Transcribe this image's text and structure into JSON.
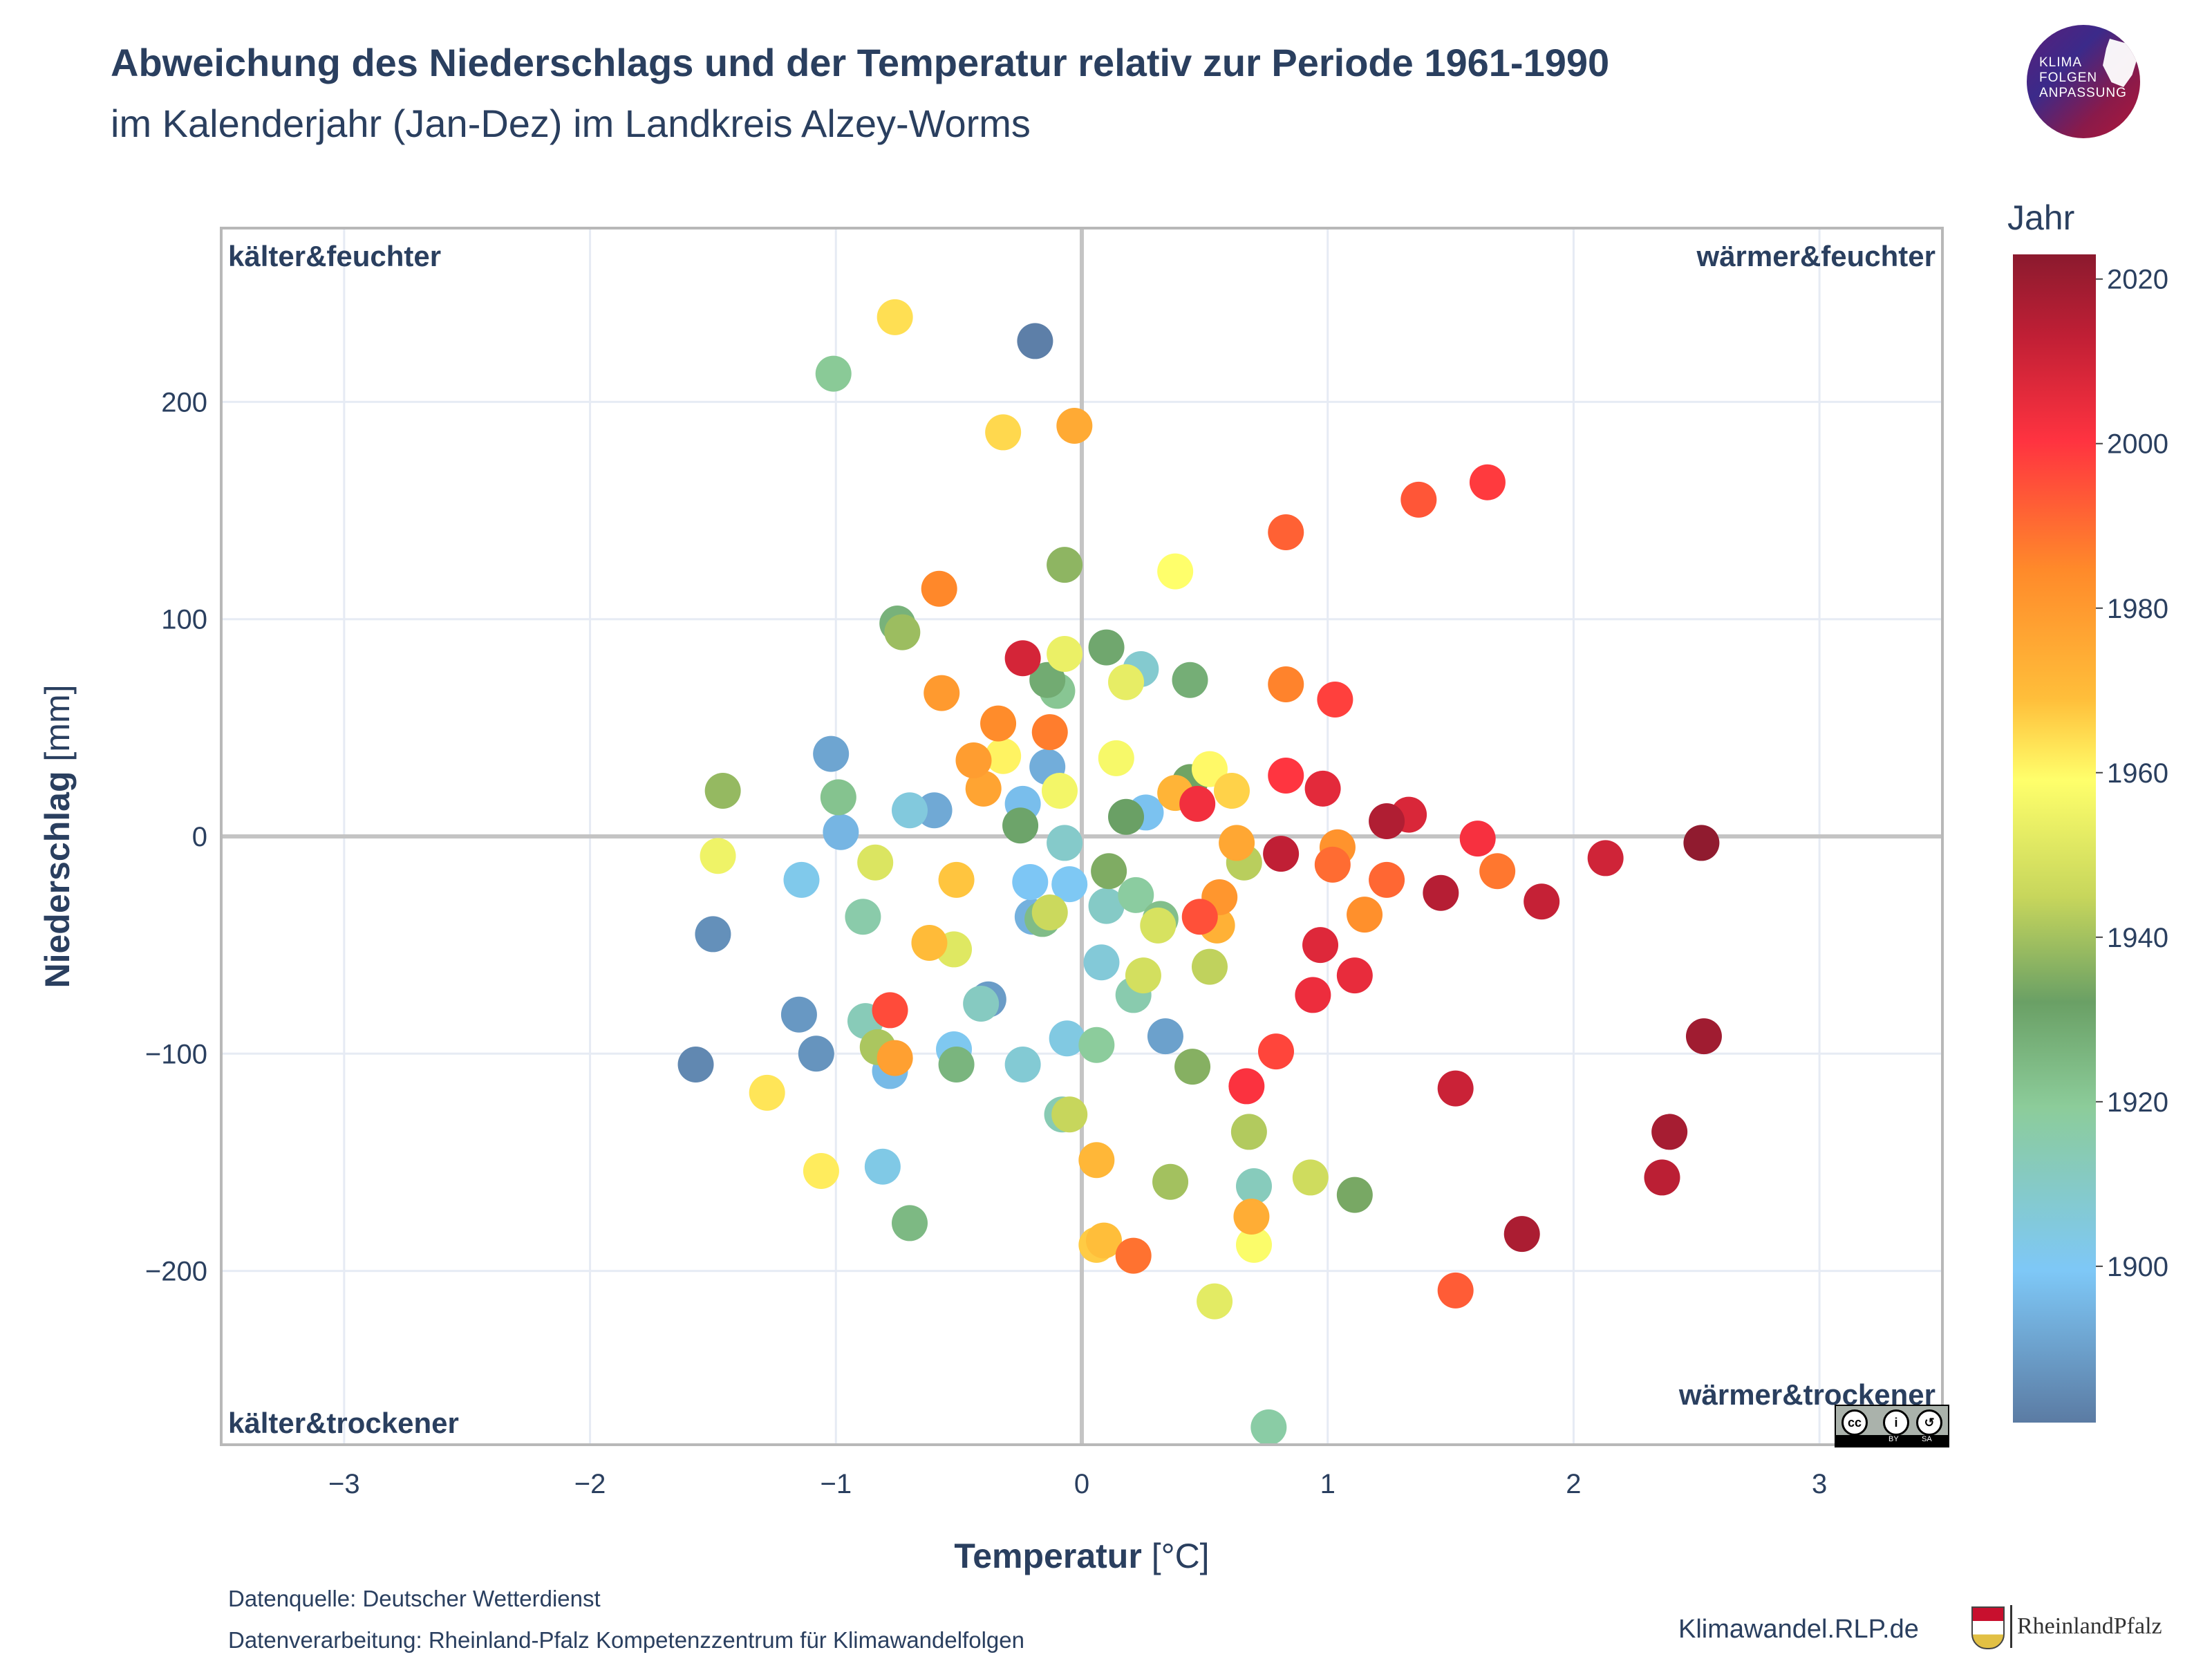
{
  "header": {
    "title": "Abweichung des Niederschlags und der Temperatur relativ zur Periode 1961-1990",
    "subtitle": "im Kalenderjahr (Jan-Dez) im Landkreis Alzey-Worms"
  },
  "logo": {
    "line1": "KLIMA",
    "line2": "FOLGEN",
    "line3": "ANPASSUNG"
  },
  "footer": {
    "source": "Datenquelle: Deutscher Wetterdienst",
    "processing": "Datenverarbeitung: Rheinland-Pfalz Kompetenzzentrum für Klimawandelfolgen",
    "website": "Klimawandel.RLP.de",
    "state_logo_text": "RheinlandPfalz",
    "license": "cc BY SA"
  },
  "colors": {
    "grid": "#e6ebf4",
    "zero_line": "#c4c4c4",
    "axis_text": "#2a3f5f",
    "scale": [
      "#5b7ba3",
      "#7ec8f7",
      "#8ccc9a",
      "#6aa065",
      "#c7d65c",
      "#ffff6b",
      "#ffbe3a",
      "#ff8a2a",
      "#ff3340",
      "#c01f35",
      "#8b1a2e"
    ]
  },
  "chart_data": {
    "type": "scatter",
    "xlabel_bold": "Temperatur",
    "xlabel_unit": " [°C]",
    "ylabel_bold": "Niederschlag",
    "ylabel_unit": " [mm]",
    "xlim": [
      -3.5,
      3.5
    ],
    "ylim": [
      -280,
      280
    ],
    "xticks": [
      -3,
      -2,
      -1,
      0,
      1,
      2,
      3
    ],
    "yticks": [
      -200,
      -100,
      0,
      100,
      200
    ],
    "grid": true,
    "quadrants": {
      "top_left": "kälter&feuchter",
      "top_right": "wärmer&feuchter",
      "bottom_left": "kälter&trockener",
      "bottom_right": "wärmer&trockener"
    },
    "colorbar": {
      "title": "Jahr",
      "min": 1881,
      "max": 2023,
      "ticks": [
        1900,
        1920,
        1940,
        1960,
        1980,
        2000,
        2020
      ]
    },
    "points": [
      {
        "x": -0.19,
        "y": 228,
        "year": 1882
      },
      {
        "x": -1.57,
        "y": -105,
        "year": 1884
      },
      {
        "x": -1.5,
        "y": -45,
        "year": 1886
      },
      {
        "x": -1.08,
        "y": -100,
        "year": 1887
      },
      {
        "x": -1.15,
        "y": -82,
        "year": 1888
      },
      {
        "x": -0.38,
        "y": -75,
        "year": 1889
      },
      {
        "x": 0.34,
        "y": -92,
        "year": 1890
      },
      {
        "x": -1.02,
        "y": 38,
        "year": 1891
      },
      {
        "x": -0.6,
        "y": 12,
        "year": 1892
      },
      {
        "x": -0.14,
        "y": 32,
        "year": 1893
      },
      {
        "x": -0.2,
        "y": -37,
        "year": 1894
      },
      {
        "x": -0.98,
        "y": 2,
        "year": 1895
      },
      {
        "x": -0.78,
        "y": -108,
        "year": 1896
      },
      {
        "x": -0.24,
        "y": 15,
        "year": 1897
      },
      {
        "x": 0.26,
        "y": 11,
        "year": 1898
      },
      {
        "x": -0.21,
        "y": -21,
        "year": 1899
      },
      {
        "x": -0.05,
        "y": -22,
        "year": 1900
      },
      {
        "x": -0.52,
        "y": -98,
        "year": 1901
      },
      {
        "x": -1.14,
        "y": -20,
        "year": 1902
      },
      {
        "x": -0.81,
        "y": -152,
        "year": 1903
      },
      {
        "x": -0.06,
        "y": -93,
        "year": 1904
      },
      {
        "x": -0.7,
        "y": 12,
        "year": 1905
      },
      {
        "x": 0.08,
        "y": -58,
        "year": 1906
      },
      {
        "x": -0.24,
        "y": -105,
        "year": 1907
      },
      {
        "x": 0.24,
        "y": 77,
        "year": 1908
      },
      {
        "x": -0.07,
        "y": -3,
        "year": 1909
      },
      {
        "x": 0.1,
        "y": -32,
        "year": 1910
      },
      {
        "x": -0.41,
        "y": -77,
        "year": 1911
      },
      {
        "x": 0.7,
        "y": -161,
        "year": 1912
      },
      {
        "x": -0.88,
        "y": -85,
        "year": 1913
      },
      {
        "x": -0.08,
        "y": -128,
        "year": 1914
      },
      {
        "x": 0.21,
        "y": -73,
        "year": 1915
      },
      {
        "x": -0.89,
        "y": -37,
        "year": 1916
      },
      {
        "x": 0.76,
        "y": -272,
        "year": 1917
      },
      {
        "x": 0.22,
        "y": -27,
        "year": 1918
      },
      {
        "x": 0.06,
        "y": -96,
        "year": 1919
      },
      {
        "x": -1.01,
        "y": 213,
        "year": 1920
      },
      {
        "x": -0.1,
        "y": 67,
        "year": 1921
      },
      {
        "x": -0.99,
        "y": 18,
        "year": 1922
      },
      {
        "x": 0.32,
        "y": -38,
        "year": 1923
      },
      {
        "x": -0.16,
        "y": -38,
        "year": 1924
      },
      {
        "x": -0.7,
        "y": -178,
        "year": 1925
      },
      {
        "x": -0.51,
        "y": -105,
        "year": 1926
      },
      {
        "x": -0.75,
        "y": 98,
        "year": 1927
      },
      {
        "x": 0.44,
        "y": 72,
        "year": 1928
      },
      {
        "x": -0.14,
        "y": 72,
        "year": 1929
      },
      {
        "x": 0.1,
        "y": 87,
        "year": 1930
      },
      {
        "x": -0.25,
        "y": 5,
        "year": 1931
      },
      {
        "x": 0.18,
        "y": 9,
        "year": 1932
      },
      {
        "x": 0.44,
        "y": 25,
        "year": 1933
      },
      {
        "x": 1.11,
        "y": -165,
        "year": 1934
      },
      {
        "x": 0.11,
        "y": -16,
        "year": 1935
      },
      {
        "x": 0.45,
        "y": -106,
        "year": 1936
      },
      {
        "x": -0.07,
        "y": 125,
        "year": 1937
      },
      {
        "x": -1.46,
        "y": 21,
        "year": 1938
      },
      {
        "x": -0.73,
        "y": 94,
        "year": 1939
      },
      {
        "x": 0.36,
        "y": -159,
        "year": 1940
      },
      {
        "x": -0.83,
        "y": -97,
        "year": 1941
      },
      {
        "x": 0.68,
        "y": -136,
        "year": 1942
      },
      {
        "x": 0.66,
        "y": -12,
        "year": 1943
      },
      {
        "x": 0.52,
        "y": -60,
        "year": 1944
      },
      {
        "x": -0.05,
        "y": -128,
        "year": 1945
      },
      {
        "x": -0.13,
        "y": -35,
        "year": 1946
      },
      {
        "x": 0.93,
        "y": -157,
        "year": 1947
      },
      {
        "x": 0.25,
        "y": -64,
        "year": 1948
      },
      {
        "x": 0.31,
        "y": -41,
        "year": 1949
      },
      {
        "x": -0.84,
        "y": -12,
        "year": 1950
      },
      {
        "x": -0.52,
        "y": -52,
        "year": 1951
      },
      {
        "x": 0.54,
        "y": -214,
        "year": 1952
      },
      {
        "x": 0.18,
        "y": 71,
        "year": 1953
      },
      {
        "x": -0.07,
        "y": 84,
        "year": 1954
      },
      {
        "x": -1.48,
        "y": -9,
        "year": 1955
      },
      {
        "x": -0.09,
        "y": 21,
        "year": 1956
      },
      {
        "x": 0.14,
        "y": 36,
        "year": 1957
      },
      {
        "x": 0.7,
        "y": -188,
        "year": 1958
      },
      {
        "x": 0.38,
        "y": 122,
        "year": 1959
      },
      {
        "x": 0.52,
        "y": 31,
        "year": 1960
      },
      {
        "x": -0.32,
        "y": 37,
        "year": 1961
      },
      {
        "x": -1.06,
        "y": -154,
        "year": 1962
      },
      {
        "x": -1.28,
        "y": -118,
        "year": 1963
      },
      {
        "x": -0.76,
        "y": 239,
        "year": 1964
      },
      {
        "x": -0.32,
        "y": 186,
        "year": 1965
      },
      {
        "x": 0.61,
        "y": 21,
        "year": 1966
      },
      {
        "x": 0.06,
        "y": -188,
        "year": 1967
      },
      {
        "x": -0.51,
        "y": -20,
        "year": 1968
      },
      {
        "x": 0.09,
        "y": -186,
        "year": 1969
      },
      {
        "x": -0.62,
        "y": -49,
        "year": 1970
      },
      {
        "x": 0.06,
        "y": -149,
        "year": 1971
      },
      {
        "x": 0.38,
        "y": 20,
        "year": 1972
      },
      {
        "x": 0.55,
        "y": -41,
        "year": 1973
      },
      {
        "x": 0.69,
        "y": -175,
        "year": 1974
      },
      {
        "x": -0.03,
        "y": 189,
        "year": 1975
      },
      {
        "x": 0.63,
        "y": -3,
        "year": 1976
      },
      {
        "x": -0.4,
        "y": 22,
        "year": 1977
      },
      {
        "x": -0.76,
        "y": -102,
        "year": 1978
      },
      {
        "x": -0.44,
        "y": 35,
        "year": 1979
      },
      {
        "x": -0.57,
        "y": 66,
        "year": 1980
      },
      {
        "x": 0.56,
        "y": -28,
        "year": 1981
      },
      {
        "x": 1.04,
        "y": -5,
        "year": 1982
      },
      {
        "x": 1.15,
        "y": -36,
        "year": 1983
      },
      {
        "x": -0.34,
        "y": 52,
        "year": 1984
      },
      {
        "x": -0.58,
        "y": 114,
        "year": 1985
      },
      {
        "x": 0.83,
        "y": 70,
        "year": 1986
      },
      {
        "x": -0.13,
        "y": 48,
        "year": 1987
      },
      {
        "x": 1.69,
        "y": -16,
        "year": 1988
      },
      {
        "x": 0.21,
        "y": -193,
        "year": 1989
      },
      {
        "x": 1.02,
        "y": -13,
        "year": 1990
      },
      {
        "x": 1.24,
        "y": -20,
        "year": 1991
      },
      {
        "x": 0.83,
        "y": 140,
        "year": 1992
      },
      {
        "x": 1.52,
        "y": -209,
        "year": 1993
      },
      {
        "x": 1.37,
        "y": 155,
        "year": 1994
      },
      {
        "x": 0.48,
        "y": -37,
        "year": 1995
      },
      {
        "x": -0.78,
        "y": -80,
        "year": 1996
      },
      {
        "x": 0.79,
        "y": -99,
        "year": 1997
      },
      {
        "x": 1.03,
        "y": 63,
        "year": 1998
      },
      {
        "x": 1.65,
        "y": 163,
        "year": 1999
      },
      {
        "x": 0.83,
        "y": 28,
        "year": 2000
      },
      {
        "x": 0.67,
        "y": -115,
        "year": 2001
      },
      {
        "x": 1.61,
        "y": -1,
        "year": 2002
      },
      {
        "x": 0.47,
        "y": 15,
        "year": 2003
      },
      {
        "x": 0.94,
        "y": -73,
        "year": 2004
      },
      {
        "x": 1.11,
        "y": -64,
        "year": 2005
      },
      {
        "x": 0.98,
        "y": 22,
        "year": 2006
      },
      {
        "x": 0.97,
        "y": -50,
        "year": 2007
      },
      {
        "x": 1.33,
        "y": 10,
        "year": 2008
      },
      {
        "x": -0.24,
        "y": 82,
        "year": 2009
      },
      {
        "x": 2.13,
        "y": -10,
        "year": 2010
      },
      {
        "x": 1.52,
        "y": -116,
        "year": 2011
      },
      {
        "x": 1.87,
        "y": -30,
        "year": 2012
      },
      {
        "x": 0.81,
        "y": -8,
        "year": 2013
      },
      {
        "x": 2.36,
        "y": -157,
        "year": 2014
      },
      {
        "x": 1.46,
        "y": -26,
        "year": 2015
      },
      {
        "x": 1.24,
        "y": 7,
        "year": 2016
      },
      {
        "x": 1.79,
        "y": -183,
        "year": 2017
      },
      {
        "x": 2.39,
        "y": -136,
        "year": 2018
      },
      {
        "x": 2.53,
        "y": -92,
        "year": 2019
      },
      {
        "x": 2.52,
        "y": -3,
        "year": 2022
      }
    ]
  }
}
